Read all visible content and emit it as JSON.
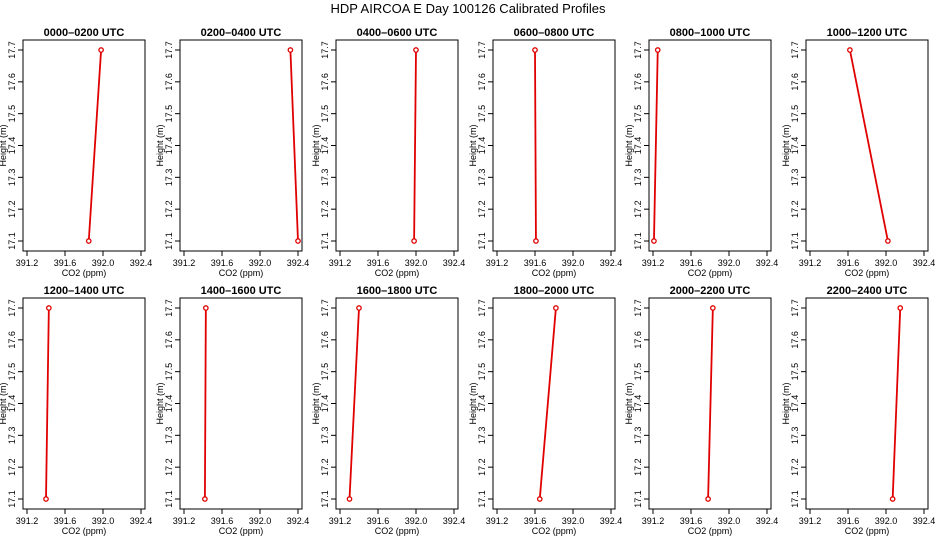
{
  "page": {
    "title": "HDP AIRCOA E  Day 100126  Calibrated Profiles"
  },
  "colors": {
    "line": "#e00000",
    "marker": "#e00000",
    "axis": "#000000",
    "background": "#ffffff"
  },
  "chart_data": [
    {
      "type": "line",
      "title": "0000–0200 UTC",
      "xlabel": "CO2 (ppm)",
      "ylabel": "Height (m)",
      "xlim": [
        391.2,
        392.4
      ],
      "ylim": [
        17.1,
        17.7
      ],
      "xticks": [
        "391.2",
        "391.6",
        "392.0",
        "392.4"
      ],
      "yticks": [
        "17.1",
        "17.2",
        "17.3",
        "17.4",
        "17.5",
        "17.6",
        "17.7"
      ],
      "points": [
        {
          "x": 391.85,
          "y": 17.1
        },
        {
          "x": 391.98,
          "y": 17.7
        }
      ]
    },
    {
      "type": "line",
      "title": "0200–0400 UTC",
      "xlabel": "CO2 (ppm)",
      "ylabel": "Height (m)",
      "xlim": [
        391.2,
        392.4
      ],
      "ylim": [
        17.1,
        17.7
      ],
      "xticks": [
        "391.2",
        "391.6",
        "392.0",
        "392.4"
      ],
      "yticks": [
        "17.1",
        "17.2",
        "17.3",
        "17.4",
        "17.5",
        "17.6",
        "17.7"
      ],
      "points": [
        {
          "x": 392.4,
          "y": 17.1
        },
        {
          "x": 392.32,
          "y": 17.7
        }
      ]
    },
    {
      "type": "line",
      "title": "0400–0600 UTC",
      "xlabel": "CO2 (ppm)",
      "ylabel": "Height (m)",
      "xlim": [
        391.2,
        392.4
      ],
      "ylim": [
        17.1,
        17.7
      ],
      "xticks": [
        "391.2",
        "391.6",
        "392.0",
        "392.4"
      ],
      "yticks": [
        "17.1",
        "17.2",
        "17.3",
        "17.4",
        "17.5",
        "17.6",
        "17.7"
      ],
      "points": [
        {
          "x": 391.98,
          "y": 17.1
        },
        {
          "x": 392.0,
          "y": 17.7
        }
      ]
    },
    {
      "type": "line",
      "title": "0600–0800 UTC",
      "xlabel": "CO2 (ppm)",
      "ylabel": "Height (m)",
      "xlim": [
        391.2,
        392.4
      ],
      "ylim": [
        17.1,
        17.7
      ],
      "xticks": [
        "391.2",
        "391.6",
        "392.0",
        "392.4"
      ],
      "yticks": [
        "17.1",
        "17.2",
        "17.3",
        "17.4",
        "17.5",
        "17.6",
        "17.7"
      ],
      "points": [
        {
          "x": 391.61,
          "y": 17.1
        },
        {
          "x": 391.6,
          "y": 17.7
        }
      ]
    },
    {
      "type": "line",
      "title": "0800–1000 UTC",
      "xlabel": "CO2 (ppm)",
      "ylabel": "Height (m)",
      "xlim": [
        391.2,
        392.4
      ],
      "ylim": [
        17.1,
        17.7
      ],
      "xticks": [
        "391.2",
        "391.6",
        "392.0",
        "392.4"
      ],
      "yticks": [
        "17.1",
        "17.2",
        "17.3",
        "17.4",
        "17.5",
        "17.6",
        "17.7"
      ],
      "points": [
        {
          "x": 391.21,
          "y": 17.1
        },
        {
          "x": 391.25,
          "y": 17.7
        }
      ]
    },
    {
      "type": "line",
      "title": "1000–1200 UTC",
      "xlabel": "CO2 (ppm)",
      "ylabel": "Height (m)",
      "xlim": [
        391.2,
        392.4
      ],
      "ylim": [
        17.1,
        17.7
      ],
      "xticks": [
        "391.2",
        "391.6",
        "392.0",
        "392.4"
      ],
      "yticks": [
        "17.1",
        "17.2",
        "17.3",
        "17.4",
        "17.5",
        "17.6",
        "17.7"
      ],
      "points": [
        {
          "x": 392.02,
          "y": 17.1
        },
        {
          "x": 391.62,
          "y": 17.7
        }
      ]
    },
    {
      "type": "line",
      "title": "1200–1400 UTC",
      "xlabel": "CO2 (ppm)",
      "ylabel": "Height (m)",
      "xlim": [
        391.2,
        392.4
      ],
      "ylim": [
        17.1,
        17.7
      ],
      "xticks": [
        "391.2",
        "391.6",
        "392.0",
        "392.4"
      ],
      "yticks": [
        "17.1",
        "17.2",
        "17.3",
        "17.4",
        "17.5",
        "17.6",
        "17.7"
      ],
      "points": [
        {
          "x": 391.4,
          "y": 17.1
        },
        {
          "x": 391.43,
          "y": 17.7
        }
      ]
    },
    {
      "type": "line",
      "title": "1400–1600 UTC",
      "xlabel": "CO2 (ppm)",
      "ylabel": "Height (m)",
      "xlim": [
        391.2,
        392.4
      ],
      "ylim": [
        17.1,
        17.7
      ],
      "xticks": [
        "391.2",
        "391.6",
        "392.0",
        "392.4"
      ],
      "yticks": [
        "17.1",
        "17.2",
        "17.3",
        "17.4",
        "17.5",
        "17.6",
        "17.7"
      ],
      "points": [
        {
          "x": 391.42,
          "y": 17.1
        },
        {
          "x": 391.43,
          "y": 17.7
        }
      ]
    },
    {
      "type": "line",
      "title": "1600–1800 UTC",
      "xlabel": "CO2 (ppm)",
      "ylabel": "Height (m)",
      "xlim": [
        391.2,
        392.4
      ],
      "ylim": [
        17.1,
        17.7
      ],
      "xticks": [
        "391.2",
        "391.6",
        "392.0",
        "392.4"
      ],
      "yticks": [
        "17.1",
        "17.2",
        "17.3",
        "17.4",
        "17.5",
        "17.6",
        "17.7"
      ],
      "points": [
        {
          "x": 391.3,
          "y": 17.1
        },
        {
          "x": 391.4,
          "y": 17.7
        }
      ]
    },
    {
      "type": "line",
      "title": "1800–2000 UTC",
      "xlabel": "CO2 (ppm)",
      "ylabel": "Height (m)",
      "xlim": [
        391.2,
        392.4
      ],
      "ylim": [
        17.1,
        17.7
      ],
      "xticks": [
        "391.2",
        "391.6",
        "392.0",
        "392.4"
      ],
      "yticks": [
        "17.1",
        "17.2",
        "17.3",
        "17.4",
        "17.5",
        "17.6",
        "17.7"
      ],
      "points": [
        {
          "x": 391.65,
          "y": 17.1
        },
        {
          "x": 391.82,
          "y": 17.7
        }
      ]
    },
    {
      "type": "line",
      "title": "2000–2200 UTC",
      "xlabel": "CO2 (ppm)",
      "ylabel": "Height (m)",
      "xlim": [
        391.2,
        392.4
      ],
      "ylim": [
        17.1,
        17.7
      ],
      "xticks": [
        "391.2",
        "391.6",
        "392.0",
        "392.4"
      ],
      "yticks": [
        "17.1",
        "17.2",
        "17.3",
        "17.4",
        "17.5",
        "17.6",
        "17.7"
      ],
      "points": [
        {
          "x": 391.78,
          "y": 17.1
        },
        {
          "x": 391.83,
          "y": 17.7
        }
      ]
    },
    {
      "type": "line",
      "title": "2200–2400 UTC",
      "xlabel": "CO2 (ppm)",
      "ylabel": "Height (m)",
      "xlim": [
        391.2,
        392.4
      ],
      "ylim": [
        17.1,
        17.7
      ],
      "xticks": [
        "391.2",
        "391.6",
        "392.0",
        "392.4"
      ],
      "yticks": [
        "17.1",
        "17.2",
        "17.3",
        "17.4",
        "17.5",
        "17.6",
        "17.7"
      ],
      "points": [
        {
          "x": 392.07,
          "y": 17.1
        },
        {
          "x": 392.15,
          "y": 17.7
        }
      ]
    }
  ]
}
